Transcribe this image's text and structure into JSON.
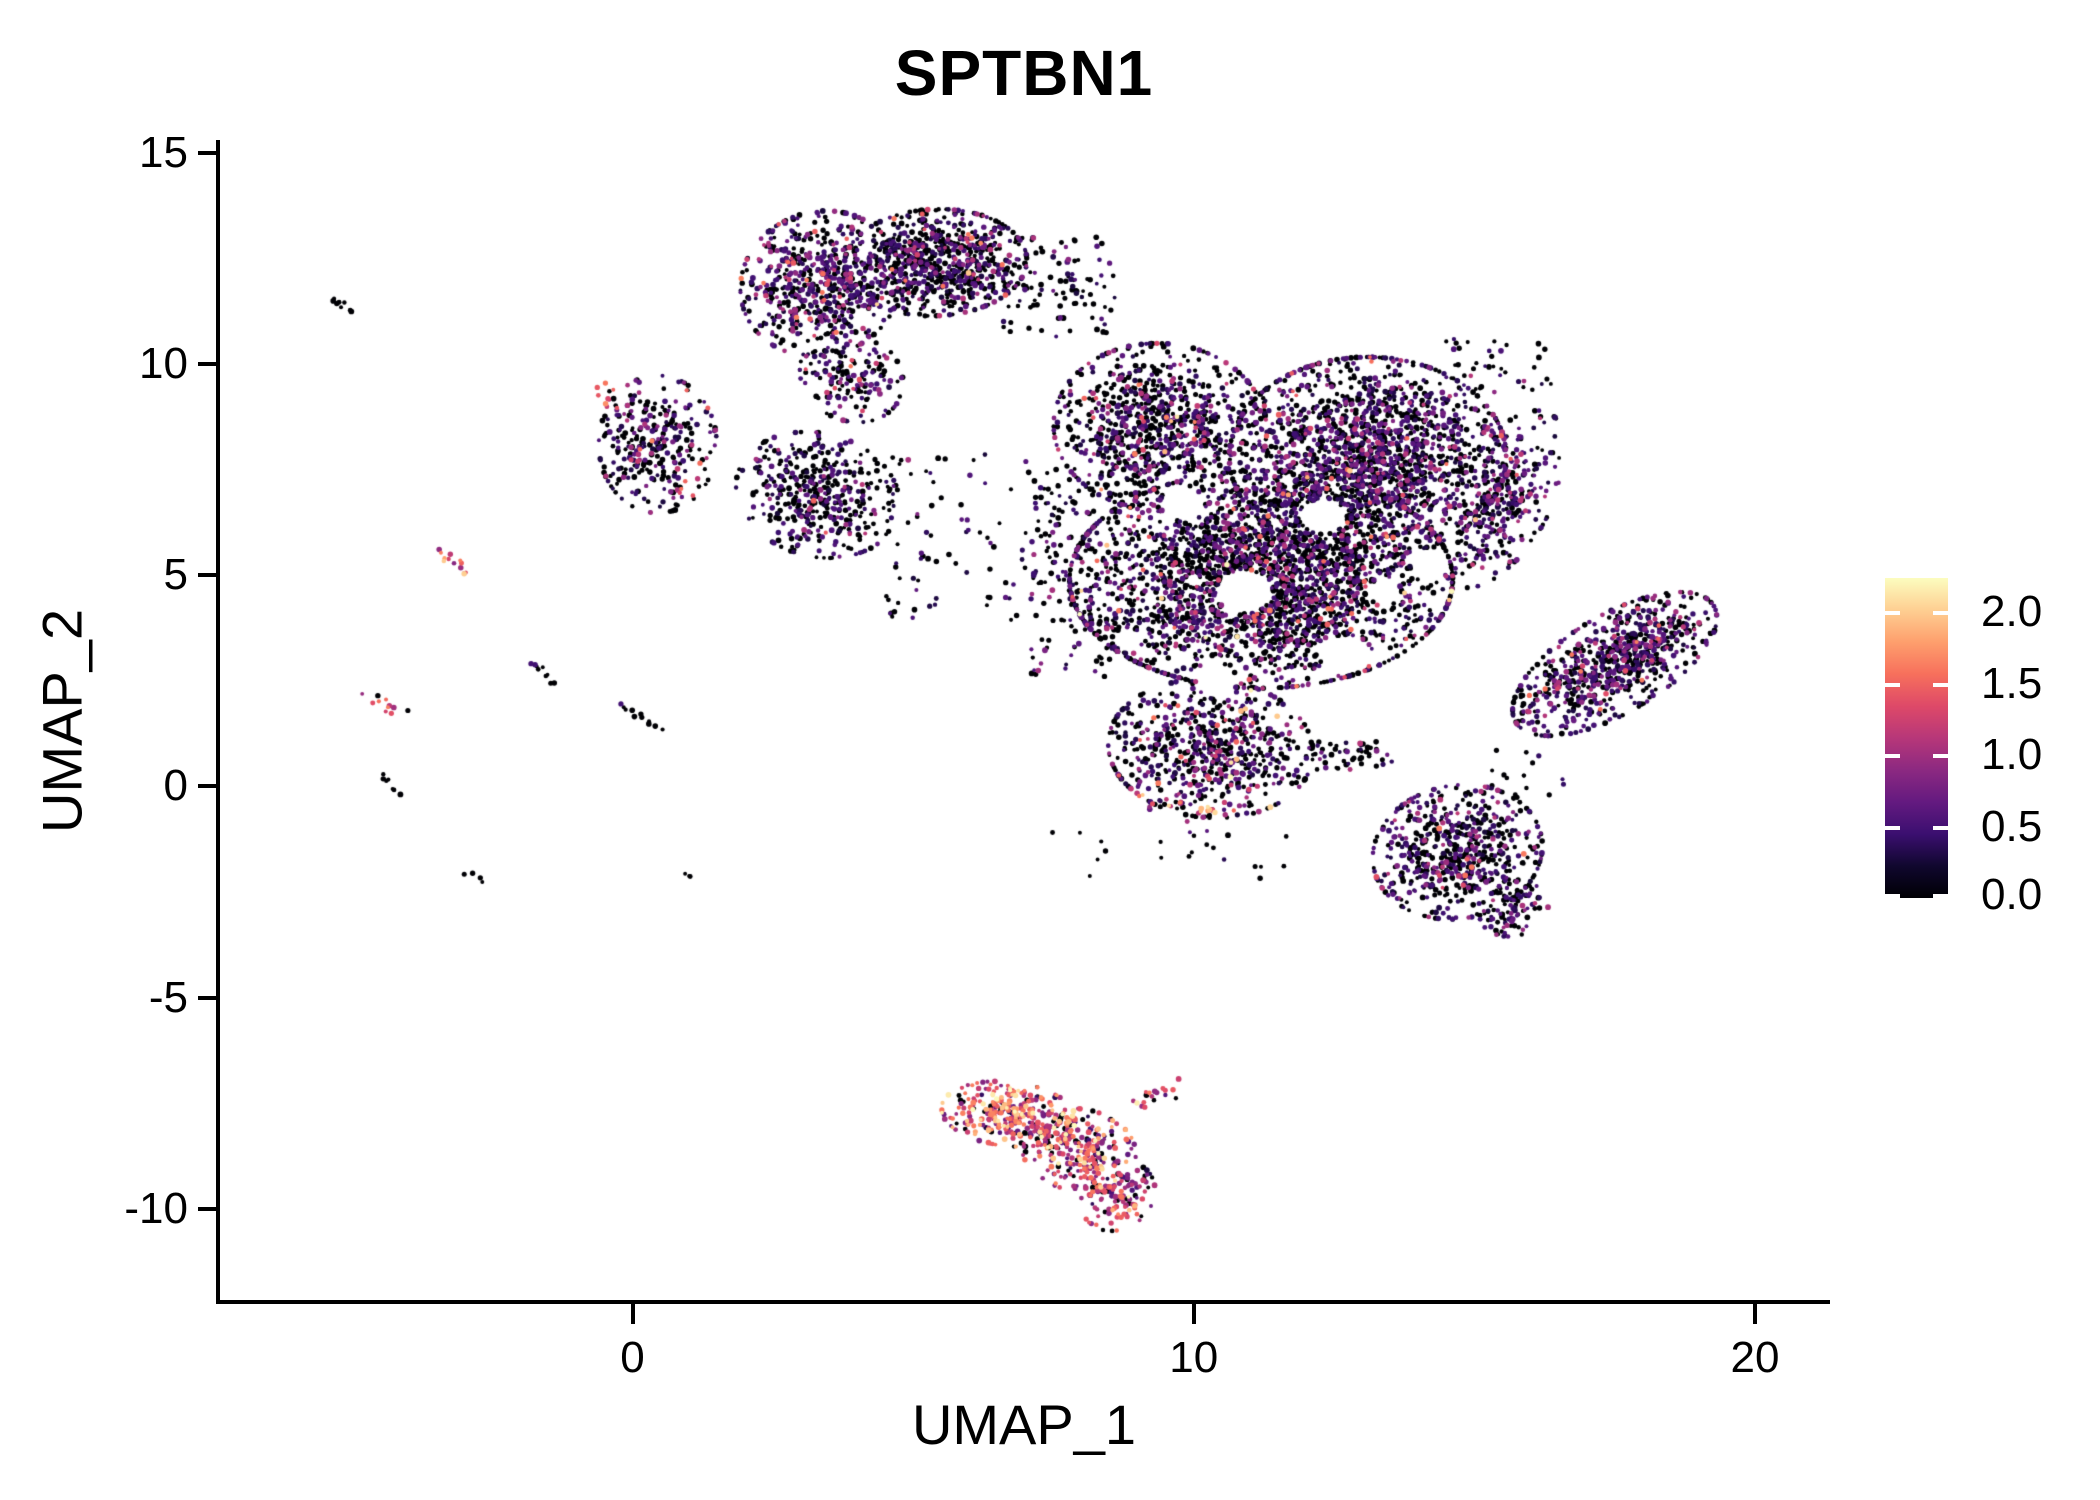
{
  "chart_data": {
    "type": "scatter",
    "title": "SPTBN1",
    "xlabel": "UMAP_1",
    "ylabel": "UMAP_2",
    "x_ticks": [
      0,
      10,
      20
    ],
    "y_ticks": [
      -10,
      -5,
      0,
      5,
      10,
      15
    ],
    "xlim": [
      -7.35,
      21.3
    ],
    "ylim": [
      -12.2,
      15.3
    ],
    "grid": false,
    "legend_position": "right",
    "colorbar": {
      "ticks": [
        "0.0",
        "0.5",
        "1.0",
        "1.5",
        "2.0"
      ],
      "tick_values": [
        0.0,
        0.5,
        1.0,
        1.5,
        2.0
      ],
      "limits": [
        0,
        2.24
      ],
      "palette": "magma"
    },
    "colormap_stops": [
      [
        0.0,
        "#000004"
      ],
      [
        0.1,
        "#10072E"
      ],
      [
        0.2,
        "#3B0F70"
      ],
      [
        0.3,
        "#641A80"
      ],
      [
        0.4,
        "#8C2981"
      ],
      [
        0.5,
        "#B73779"
      ],
      [
        0.6,
        "#DE4968"
      ],
      [
        0.7,
        "#F7705C"
      ],
      [
        0.8,
        "#FE9F6D"
      ],
      [
        0.9,
        "#FECF92"
      ],
      [
        1.0,
        "#FCFDBF"
      ]
    ],
    "expression_bands": [
      [
        0,
        0
      ],
      [
        0.25,
        0.65
      ],
      [
        0.65,
        1.15
      ],
      [
        1.15,
        1.65
      ],
      [
        1.65,
        2.24
      ]
    ],
    "seed": 42,
    "point_radius": [
      1.9,
      2.9
    ],
    "representation": "procedural_density_model",
    "voids": [
      [
        10.9,
        4.6,
        0.5
      ],
      [
        12.7,
        3.1,
        0.45
      ],
      [
        12.3,
        6.4,
        0.4
      ],
      [
        9.8,
        6.7,
        0.4
      ],
      [
        14.2,
        5.3,
        0.35
      ],
      [
        10.4,
        2.5,
        0.35
      ],
      [
        13.4,
        4.6,
        0.3
      ]
    ],
    "clusters": [
      {
        "id": "top-left-lobe",
        "shape": "blob",
        "cx": 3.35,
        "cy": 11.9,
        "rx": 1.35,
        "ry": 1.65,
        "rot": -10,
        "n": 620,
        "w": [
          0.38,
          0.43,
          0.15,
          0.035,
          0.005
        ]
      },
      {
        "id": "top-right-lobe",
        "shape": "blob",
        "cx": 5.4,
        "cy": 12.4,
        "rx": 1.55,
        "ry": 1.2,
        "rot": 5,
        "n": 780,
        "w": [
          0.55,
          0.33,
          0.1,
          0.018,
          0.002
        ]
      },
      {
        "id": "top-right-tail",
        "shape": "box",
        "x1": 6.6,
        "y1": 10.6,
        "x2": 8.6,
        "y2": 13.0,
        "n": 110,
        "w": [
          0.78,
          0.17,
          0.05,
          0,
          0
        ]
      },
      {
        "id": "top-neck",
        "shape": "blob",
        "cx": 3.9,
        "cy": 9.7,
        "rx": 0.85,
        "ry": 1.05,
        "rot": 20,
        "n": 170,
        "w": [
          0.5,
          0.35,
          0.13,
          0.02,
          0
        ]
      },
      {
        "id": "left-small",
        "shape": "blob",
        "cx": 0.45,
        "cy": 8.1,
        "rx": 1.0,
        "ry": 1.55,
        "rot": 0,
        "n": 300,
        "w": [
          0.52,
          0.3,
          0.13,
          0.04,
          0.01
        ]
      },
      {
        "id": "left-small-accent",
        "shape": "line",
        "x1": -0.55,
        "y1": 9.5,
        "x2": -0.25,
        "y2": 8.9,
        "jitter": 0.12,
        "n": 12,
        "w": [
          0.05,
          0.1,
          0.25,
          0.45,
          0.15
        ]
      },
      {
        "id": "left-small-accent2",
        "shape": "line",
        "x1": 0.55,
        "y1": 7.1,
        "x2": 1.0,
        "y2": 6.8,
        "jitter": 0.1,
        "n": 8,
        "w": [
          0.1,
          0.15,
          0.35,
          0.35,
          0.05
        ]
      },
      {
        "id": "mid-small",
        "shape": "blob",
        "cx": 3.3,
        "cy": 6.9,
        "rx": 1.3,
        "ry": 1.5,
        "rot": 40,
        "n": 430,
        "w": [
          0.58,
          0.32,
          0.09,
          0.01,
          0
        ]
      },
      {
        "id": "bridge-mid-main",
        "shape": "box",
        "x1": 4.5,
        "y1": 3.9,
        "x2": 7.6,
        "y2": 7.9,
        "n": 90,
        "w": [
          0.62,
          0.3,
          0.08,
          0,
          0
        ]
      },
      {
        "id": "main-upper-left",
        "shape": "blob",
        "cx": 9.4,
        "cy": 8.5,
        "rx": 1.8,
        "ry": 1.9,
        "rot": 15,
        "n": 900,
        "w": [
          0.56,
          0.3,
          0.11,
          0.025,
          0.005
        ]
      },
      {
        "id": "main-upper-right",
        "shape": "blob",
        "cx": 13.1,
        "cy": 7.8,
        "rx": 2.35,
        "ry": 2.25,
        "rot": 0,
        "n": 1750,
        "w": [
          0.5,
          0.36,
          0.12,
          0.018,
          0.002
        ]
      },
      {
        "id": "main-right-crescent",
        "shape": "blob",
        "cx": 15.5,
        "cy": 6.8,
        "rx": 0.85,
        "ry": 2.1,
        "rot": -20,
        "n": 320,
        "w": [
          0.45,
          0.4,
          0.14,
          0.01,
          0
        ]
      },
      {
        "id": "main-top-sparse",
        "shape": "box",
        "x1": 14.4,
        "y1": 9.3,
        "x2": 16.4,
        "y2": 10.6,
        "n": 40,
        "w": [
          0.75,
          0.2,
          0.05,
          0,
          0
        ]
      },
      {
        "id": "main-mid-band",
        "shape": "blob",
        "cx": 11.2,
        "cy": 4.9,
        "rx": 3.25,
        "ry": 2.45,
        "rot": 0,
        "n": 2550,
        "w": [
          0.57,
          0.29,
          0.11,
          0.025,
          0.005
        ]
      },
      {
        "id": "main-left-edge",
        "shape": "box",
        "x1": 7.1,
        "y1": 2.6,
        "x2": 8.6,
        "y2": 7.4,
        "n": 150,
        "w": [
          0.62,
          0.28,
          0.1,
          0,
          0
        ]
      },
      {
        "id": "main-lower-hook",
        "shape": "blob",
        "cx": 10.3,
        "cy": 0.9,
        "rx": 1.75,
        "ry": 1.55,
        "rot": -15,
        "n": 660,
        "w": [
          0.5,
          0.33,
          0.13,
          0.03,
          0.01
        ]
      },
      {
        "id": "hook-bright-edge",
        "shape": "line",
        "x1": 9.05,
        "y1": -0.3,
        "x2": 10.65,
        "y2": -0.55,
        "jitter": 0.15,
        "n": 30,
        "w": [
          0.05,
          0.1,
          0.4,
          0.35,
          0.1
        ]
      },
      {
        "id": "bridge-lobe",
        "shape": "box",
        "x1": 12.0,
        "y1": 0.4,
        "x2": 13.6,
        "y2": 1.1,
        "n": 50,
        "w": [
          0.6,
          0.3,
          0.1,
          0,
          0
        ]
      },
      {
        "id": "lower-right-lobe",
        "shape": "blob",
        "cx": 14.7,
        "cy": -1.55,
        "rx": 1.4,
        "ry": 1.55,
        "rot": -30,
        "n": 620,
        "w": [
          0.52,
          0.33,
          0.13,
          0.02,
          0
        ]
      },
      {
        "id": "lower-right-tail",
        "shape": "blob",
        "cx": 15.7,
        "cy": -2.9,
        "rx": 0.55,
        "ry": 0.65,
        "rot": -35,
        "n": 90,
        "w": [
          0.5,
          0.38,
          0.12,
          0,
          0
        ]
      },
      {
        "id": "right-wing",
        "shape": "blob",
        "cx": 17.5,
        "cy": 2.9,
        "rx": 2.15,
        "ry": 1.0,
        "rot": 42,
        "n": 780,
        "w": [
          0.42,
          0.42,
          0.14,
          0.02,
          0
        ]
      },
      {
        "id": "wing-main-gap-sparse",
        "shape": "box",
        "x1": 15.0,
        "y1": -0.4,
        "x2": 16.6,
        "y2": 0.9,
        "n": 18,
        "w": [
          0.7,
          0.3,
          0,
          0,
          0
        ]
      },
      {
        "id": "below-main-sparse",
        "shape": "box",
        "x1": 7.3,
        "y1": -2.2,
        "x2": 11.8,
        "y2": -1.0,
        "n": 22,
        "w": [
          0.8,
          0.2,
          0,
          0,
          0
        ]
      },
      {
        "id": "bottom-bright-1",
        "shape": "blob",
        "cx": 6.7,
        "cy": -7.75,
        "rx": 1.15,
        "ry": 0.72,
        "rot": -10,
        "n": 300,
        "w": [
          0.1,
          0.06,
          0.22,
          0.38,
          0.24
        ]
      },
      {
        "id": "bottom-bright-2",
        "shape": "blob",
        "cx": 7.95,
        "cy": -8.6,
        "rx": 1.0,
        "ry": 0.9,
        "rot": -35,
        "n": 250,
        "w": [
          0.13,
          0.1,
          0.32,
          0.33,
          0.12
        ]
      },
      {
        "id": "bottom-bright-3",
        "shape": "blob",
        "cx": 8.65,
        "cy": -9.7,
        "rx": 0.6,
        "ry": 0.8,
        "rot": -20,
        "n": 120,
        "w": [
          0.15,
          0.12,
          0.38,
          0.28,
          0.07
        ]
      },
      {
        "id": "bottom-spur",
        "shape": "line",
        "x1": 9.0,
        "y1": -7.55,
        "x2": 9.65,
        "y2": -7.2,
        "jitter": 0.1,
        "n": 18,
        "w": [
          0.2,
          0.1,
          0.3,
          0.3,
          0.1
        ]
      },
      {
        "id": "streak-black-top",
        "shape": "line",
        "x1": -5.35,
        "y1": 11.55,
        "x2": -5.0,
        "y2": 11.3,
        "jitter": 0.05,
        "n": 8,
        "w": [
          1,
          0,
          0,
          0,
          0
        ]
      },
      {
        "id": "streak-orange-a",
        "shape": "line",
        "x1": -3.45,
        "y1": 5.55,
        "x2": -2.95,
        "y2": 5.0,
        "jitter": 0.07,
        "n": 13,
        "w": [
          0,
          0.05,
          0.1,
          0.45,
          0.4
        ]
      },
      {
        "id": "streak-dark-b",
        "shape": "line",
        "x1": -1.85,
        "y1": 2.9,
        "x2": -1.45,
        "y2": 2.5,
        "jitter": 0.06,
        "n": 9,
        "w": [
          0.8,
          0.2,
          0,
          0,
          0
        ]
      },
      {
        "id": "streak-black-c",
        "shape": "line",
        "x1": -0.25,
        "y1": 1.95,
        "x2": 0.5,
        "y2": 1.35,
        "jitter": 0.06,
        "n": 11,
        "w": [
          0.88,
          0.12,
          0,
          0,
          0
        ]
      },
      {
        "id": "streak-orange-d",
        "shape": "line",
        "x1": -4.65,
        "y1": 2.15,
        "x2": -4.15,
        "y2": 1.75,
        "jitter": 0.07,
        "n": 11,
        "w": [
          0.05,
          0.08,
          0.12,
          0.35,
          0.4
        ]
      },
      {
        "id": "streak-black-e",
        "shape": "line",
        "x1": -4.45,
        "y1": 0.3,
        "x2": -4.15,
        "y2": -0.15,
        "jitter": 0.06,
        "n": 7,
        "w": [
          1,
          0,
          0,
          0,
          0
        ]
      },
      {
        "id": "stray-dash-f",
        "shape": "line",
        "x1": -2.9,
        "y1": -2.0,
        "x2": -2.7,
        "y2": -2.2,
        "jitter": 0.05,
        "n": 4,
        "w": [
          1,
          0,
          0,
          0,
          0
        ]
      },
      {
        "id": "stray-dot-g",
        "shape": "line",
        "x1": 0.95,
        "y1": -2.0,
        "x2": 1.05,
        "y2": -2.1,
        "jitter": 0.05,
        "n": 3,
        "w": [
          1,
          0,
          0,
          0,
          0
        ]
      }
    ]
  }
}
